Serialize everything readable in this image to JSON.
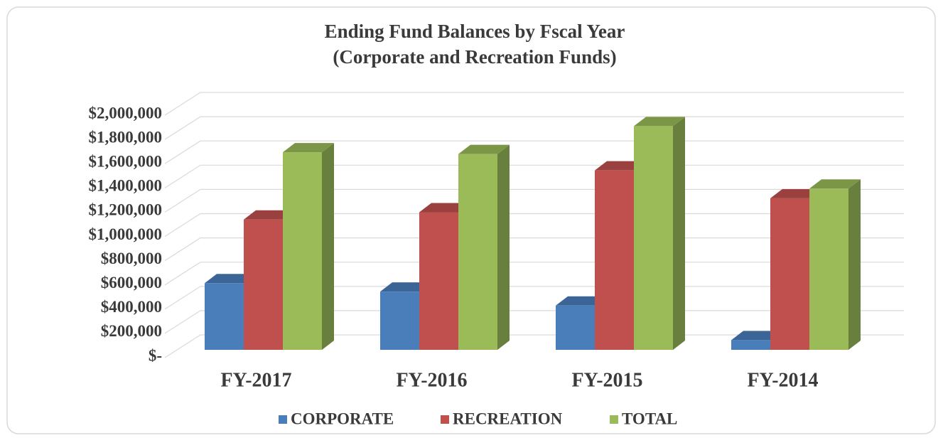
{
  "chart_data": {
    "type": "bar3d",
    "title": "Ending Fund Balances by Fscal Year",
    "subtitle": "(Corporate and Recreation Funds)",
    "categories": [
      "FY-2017",
      "FY-2016",
      "FY-2015",
      "FY-2014"
    ],
    "series": [
      {
        "name": "CORPORATE",
        "color": "#4a7ebb",
        "values": [
          550000,
          480000,
          365000,
          80000
        ]
      },
      {
        "name": "RECREATION",
        "color": "#c0504d",
        "values": [
          1075000,
          1135000,
          1480000,
          1250000
        ]
      },
      {
        "name": "TOTAL",
        "color": "#9bbb59",
        "values": [
          1630000,
          1615000,
          1845000,
          1330000
        ]
      }
    ],
    "ylim": [
      0,
      2000000
    ],
    "yticks": [
      {
        "value": 0,
        "label": "$-"
      },
      {
        "value": 200000,
        "label": "$200,000"
      },
      {
        "value": 400000,
        "label": "$400,000"
      },
      {
        "value": 600000,
        "label": "$600,000"
      },
      {
        "value": 800000,
        "label": "$800,000"
      },
      {
        "value": 1000000,
        "label": "$1,000,000"
      },
      {
        "value": 1200000,
        "label": "$1,200,000"
      },
      {
        "value": 1400000,
        "label": "$1,400,000"
      },
      {
        "value": 1600000,
        "label": "$1,600,000"
      },
      {
        "value": 1800000,
        "label": "$1,800,000"
      },
      {
        "value": 2000000,
        "label": "$2,000,000"
      }
    ],
    "grid": true,
    "legend": "bottom"
  }
}
